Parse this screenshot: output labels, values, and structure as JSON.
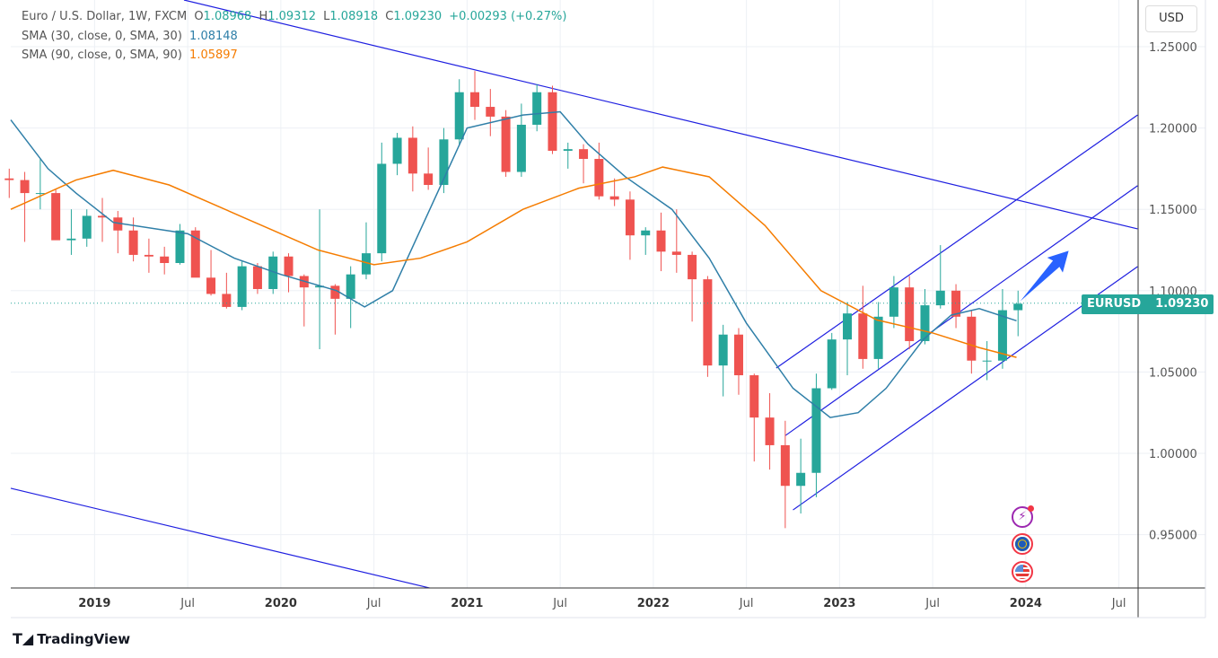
{
  "header": {
    "symbol_desc": "Euro / U.S. Dollar, 1W, FXCM",
    "open_label": "O",
    "open": "1.08968",
    "high_label": "H",
    "high": "1.09312",
    "low_label": "L",
    "low": "1.08918",
    "close_label": "C",
    "close": "1.09230",
    "change": "+0.00293 (+0.27%)"
  },
  "indicators": [
    {
      "label": "SMA (30, close, 0, SMA, 30)",
      "value": "1.08148",
      "color": "#2f7fa8"
    },
    {
      "label": "SMA (90, close, 0, SMA, 90)",
      "value": "1.05897",
      "color": "#f57c00"
    }
  ],
  "currency_button": "USD",
  "price_tag": {
    "symbol": "EURUSD",
    "price": "1.09230",
    "value": 1.0923
  },
  "branding": "TradingView",
  "colors": {
    "up": "#26a69a",
    "down": "#ef5350",
    "drawing": "#1f1fe0",
    "arrow": "#2962ff"
  },
  "chart_data": {
    "type": "candlestick",
    "title": "Euro / U.S. Dollar, 1W, FXCM",
    "ylim": [
      0.92,
      1.28
    ],
    "xlim": [
      2018.55,
      2024.6
    ],
    "y_ticks": [
      "1.25000",
      "1.20000",
      "1.15000",
      "1.10000",
      "1.05000",
      "1.00000",
      "0.95000"
    ],
    "x_ticks": [
      {
        "t": 2019.0,
        "label": "2019",
        "bold": true
      },
      {
        "t": 2019.5,
        "label": "Jul"
      },
      {
        "t": 2020.0,
        "label": "2020",
        "bold": true
      },
      {
        "t": 2020.5,
        "label": "Jul"
      },
      {
        "t": 2021.0,
        "label": "2021",
        "bold": true
      },
      {
        "t": 2021.5,
        "label": "Jul"
      },
      {
        "t": 2022.0,
        "label": "2022",
        "bold": true
      },
      {
        "t": 2022.5,
        "label": "Jul"
      },
      {
        "t": 2023.0,
        "label": "2023",
        "bold": true
      },
      {
        "t": 2023.5,
        "label": "Jul"
      },
      {
        "t": 2024.0,
        "label": "2024",
        "bold": true
      },
      {
        "t": 2024.5,
        "label": "Jul"
      }
    ],
    "candles_start": [
      2018,
      7
    ],
    "ohlc": [
      [
        1.169,
        1.175,
        1.157,
        1.168
      ],
      [
        1.168,
        1.173,
        1.13,
        1.16
      ],
      [
        1.16,
        1.181,
        1.15,
        1.16
      ],
      [
        1.16,
        1.162,
        1.132,
        1.131
      ],
      [
        1.131,
        1.15,
        1.122,
        1.132
      ],
      [
        1.132,
        1.15,
        1.127,
        1.146
      ],
      [
        1.146,
        1.157,
        1.13,
        1.145
      ],
      [
        1.145,
        1.149,
        1.123,
        1.137
      ],
      [
        1.137,
        1.145,
        1.118,
        1.122
      ],
      [
        1.122,
        1.132,
        1.111,
        1.121
      ],
      [
        1.121,
        1.127,
        1.11,
        1.117
      ],
      [
        1.117,
        1.141,
        1.116,
        1.137
      ],
      [
        1.137,
        1.139,
        1.11,
        1.108
      ],
      [
        1.108,
        1.125,
        1.097,
        1.098
      ],
      [
        1.098,
        1.111,
        1.089,
        1.09
      ],
      [
        1.09,
        1.118,
        1.088,
        1.115
      ],
      [
        1.115,
        1.117,
        1.098,
        1.101
      ],
      [
        1.101,
        1.124,
        1.098,
        1.121
      ],
      [
        1.121,
        1.123,
        1.099,
        1.109
      ],
      [
        1.109,
        1.11,
        1.078,
        1.102
      ],
      [
        1.102,
        1.15,
        1.064,
        1.103
      ],
      [
        1.103,
        1.104,
        1.073,
        1.095
      ],
      [
        1.095,
        1.115,
        1.077,
        1.11
      ],
      [
        1.11,
        1.142,
        1.107,
        1.123
      ],
      [
        1.123,
        1.191,
        1.118,
        1.178
      ],
      [
        1.178,
        1.197,
        1.171,
        1.194
      ],
      [
        1.194,
        1.201,
        1.161,
        1.172
      ],
      [
        1.172,
        1.188,
        1.162,
        1.165
      ],
      [
        1.165,
        1.2,
        1.16,
        1.193
      ],
      [
        1.193,
        1.23,
        1.189,
        1.222
      ],
      [
        1.222,
        1.235,
        1.205,
        1.213
      ],
      [
        1.213,
        1.224,
        1.195,
        1.207
      ],
      [
        1.207,
        1.211,
        1.17,
        1.173
      ],
      [
        1.173,
        1.215,
        1.17,
        1.202
      ],
      [
        1.202,
        1.227,
        1.198,
        1.222
      ],
      [
        1.222,
        1.226,
        1.184,
        1.186
      ],
      [
        1.186,
        1.191,
        1.175,
        1.187
      ],
      [
        1.187,
        1.19,
        1.166,
        1.181
      ],
      [
        1.181,
        1.191,
        1.156,
        1.158
      ],
      [
        1.158,
        1.169,
        1.152,
        1.156
      ],
      [
        1.156,
        1.161,
        1.119,
        1.134
      ],
      [
        1.134,
        1.139,
        1.122,
        1.137
      ],
      [
        1.137,
        1.148,
        1.112,
        1.124
      ],
      [
        1.124,
        1.15,
        1.111,
        1.122
      ],
      [
        1.122,
        1.124,
        1.081,
        1.107
      ],
      [
        1.107,
        1.109,
        1.047,
        1.054
      ],
      [
        1.054,
        1.079,
        1.035,
        1.073
      ],
      [
        1.073,
        1.077,
        1.036,
        1.048
      ],
      [
        1.048,
        1.049,
        0.995,
        1.022
      ],
      [
        1.022,
        1.037,
        0.99,
        1.005
      ],
      [
        1.005,
        1.02,
        0.954,
        0.98
      ],
      [
        0.98,
        1.009,
        0.963,
        0.988
      ],
      [
        0.988,
        1.049,
        0.973,
        1.04
      ],
      [
        1.04,
        1.074,
        1.039,
        1.07
      ],
      [
        1.07,
        1.093,
        1.048,
        1.086
      ],
      [
        1.086,
        1.103,
        1.052,
        1.058
      ],
      [
        1.058,
        1.093,
        1.052,
        1.084
      ],
      [
        1.084,
        1.109,
        1.077,
        1.102
      ],
      [
        1.102,
        1.109,
        1.064,
        1.069
      ],
      [
        1.069,
        1.101,
        1.067,
        1.091
      ],
      [
        1.091,
        1.128,
        1.089,
        1.1
      ],
      [
        1.1,
        1.104,
        1.077,
        1.084
      ],
      [
        1.084,
        1.088,
        1.049,
        1.057
      ],
      [
        1.057,
        1.069,
        1.045,
        1.057
      ],
      [
        1.057,
        1.101,
        1.052,
        1.088
      ],
      [
        1.088,
        1.1,
        1.072,
        1.092
      ]
    ],
    "series": [
      {
        "name": "SMA 30",
        "color": "#2f7fa8",
        "points": [
          [
            2018.55,
            1.205
          ],
          [
            2018.75,
            1.175
          ],
          [
            2018.9,
            1.16
          ],
          [
            2019.1,
            1.142
          ],
          [
            2019.5,
            1.135
          ],
          [
            2019.75,
            1.12
          ],
          [
            2020.0,
            1.11
          ],
          [
            2020.3,
            1.1
          ],
          [
            2020.45,
            1.09
          ],
          [
            2020.6,
            1.1
          ],
          [
            2020.8,
            1.15
          ],
          [
            2021.0,
            1.2
          ],
          [
            2021.3,
            1.208
          ],
          [
            2021.5,
            1.21
          ],
          [
            2021.65,
            1.19
          ],
          [
            2021.85,
            1.17
          ],
          [
            2022.1,
            1.15
          ],
          [
            2022.3,
            1.12
          ],
          [
            2022.5,
            1.08
          ],
          [
            2022.75,
            1.04
          ],
          [
            2022.95,
            1.022
          ],
          [
            2023.1,
            1.025
          ],
          [
            2023.25,
            1.04
          ],
          [
            2023.45,
            1.07
          ],
          [
            2023.6,
            1.085
          ],
          [
            2023.75,
            1.089
          ],
          [
            2023.95,
            1.0815
          ]
        ]
      },
      {
        "name": "SMA 90",
        "color": "#f57c00",
        "points": [
          [
            2018.55,
            1.15
          ],
          [
            2018.9,
            1.168
          ],
          [
            2019.1,
            1.174
          ],
          [
            2019.4,
            1.165
          ],
          [
            2019.8,
            1.145
          ],
          [
            2020.2,
            1.125
          ],
          [
            2020.5,
            1.116
          ],
          [
            2020.75,
            1.12
          ],
          [
            2021.0,
            1.13
          ],
          [
            2021.3,
            1.15
          ],
          [
            2021.6,
            1.163
          ],
          [
            2021.9,
            1.17
          ],
          [
            2022.05,
            1.176
          ],
          [
            2022.3,
            1.17
          ],
          [
            2022.6,
            1.14
          ],
          [
            2022.9,
            1.1
          ],
          [
            2023.2,
            1.082
          ],
          [
            2023.5,
            1.074
          ],
          [
            2023.75,
            1.065
          ],
          [
            2023.95,
            1.059
          ]
        ]
      }
    ],
    "drawings": [
      {
        "name": "falling-resistance",
        "from": [
          2019.48,
          1.2787
        ],
        "to": [
          2024.6,
          1.138
        ]
      },
      {
        "name": "channel-upper",
        "from": [
          2022.66,
          1.0524
        ],
        "to": [
          2024.6,
          1.208
        ]
      },
      {
        "name": "channel-middle",
        "from": [
          2022.71,
          1.011
        ],
        "to": [
          2024.6,
          1.1645
        ]
      },
      {
        "name": "channel-lower",
        "from": [
          2022.75,
          0.9652
        ],
        "to": [
          2024.6,
          1.1148
        ]
      },
      {
        "name": "falling-support",
        "from": [
          2018.55,
          0.9785
        ],
        "to": [
          2020.8,
          0.9172
        ]
      }
    ],
    "arrow": {
      "from": [
        2023.97,
        1.0935
      ],
      "to": [
        2024.23,
        1.1245
      ]
    }
  }
}
